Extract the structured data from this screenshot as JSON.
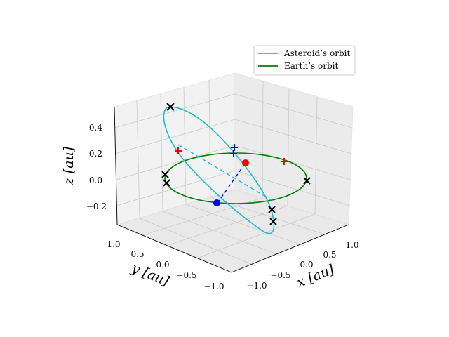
{
  "chart_data": {
    "type": "line",
    "projection": "3d",
    "title": "",
    "axes": {
      "x": {
        "label": "x [au]",
        "ticks": [
          "−1.0",
          "−0.5",
          "0.0",
          "0.5",
          "1.0"
        ]
      },
      "y": {
        "label": "y [au]",
        "ticks": [
          "1.0",
          "0.5",
          "0.0",
          "−0.5",
          "−1.0"
        ]
      },
      "z": {
        "label": "z [au]",
        "ticks": [
          "0.4",
          "0.2",
          "0.0",
          "−0.2"
        ]
      }
    },
    "grid": true,
    "legend": {
      "position": "upper-right",
      "entries": [
        {
          "name": "Asteroid’s orbit",
          "color": "#17becf"
        },
        {
          "name": "Earth’s orbit",
          "color": "#008000"
        }
      ]
    },
    "series": [
      {
        "name": "Asteroid’s orbit",
        "color": "#17becf",
        "kind": "tilted ellipse, inclination ~30°"
      },
      {
        "name": "Earth’s orbit",
        "color": "#008000",
        "kind": "circle r=1 au in z=0 plane"
      }
    ],
    "markers": {
      "black_x": "orbit extreme points (6 visible)",
      "red_plus": "projected points on Earth orbit plane",
      "blue_plus": "asteroid position projections",
      "red_dot": "Sun-side reference point",
      "blue_dot": "intersection node"
    }
  }
}
